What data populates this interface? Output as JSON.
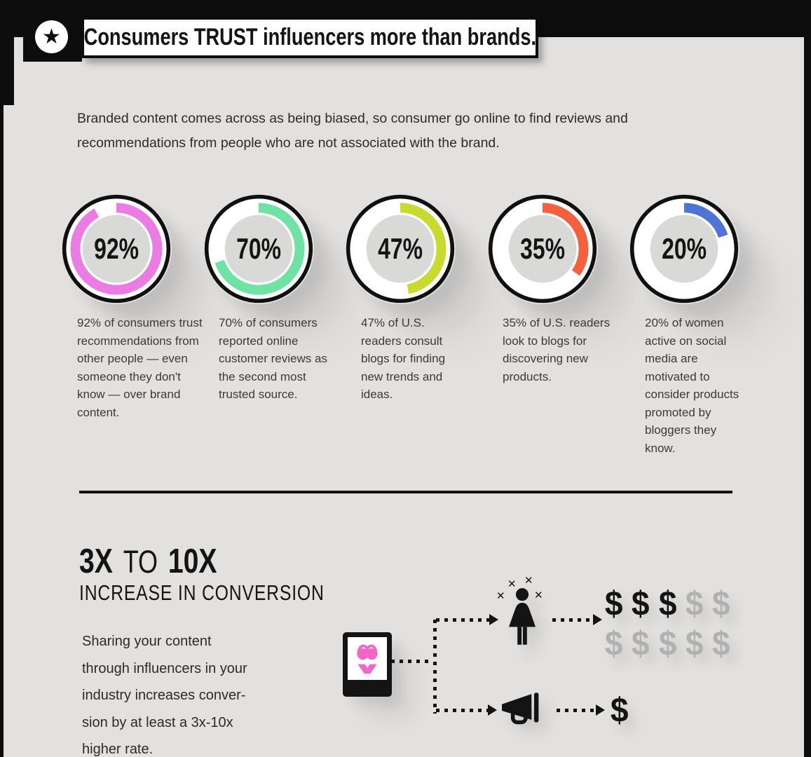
{
  "page": {
    "background": "#e2e1df",
    "frame_color": "#0d0d0d"
  },
  "header": {
    "badge_glyph": "★",
    "title": "Consumers TRUST influencers more than brands."
  },
  "intro": {
    "lines": [
      "Branded content comes across as being biased, so consumer go online to find reviews and",
      "recommendations from people who are not associated with the brand."
    ]
  },
  "chart_data": {
    "type": "pie",
    "variant": "donut-gauge-row",
    "units": "percent",
    "start_angle_deg": 0,
    "direction": "clockwise",
    "ring_background": "#ffffff",
    "center_fill": "#d9d9d8",
    "items": [
      {
        "value": 92,
        "label": "92%",
        "color": "#ea7ce4",
        "caption": "92% of consumers trust recommendations from other people — even someone they don't know — over brand content."
      },
      {
        "value": 70,
        "label": "70%",
        "color": "#6fe3a4",
        "caption": "70% of consumers reported online customer reviews as the second most trusted source."
      },
      {
        "value": 47,
        "label": "47%",
        "color": "#c8da2e",
        "caption": "47% of U.S. readers consult blogs for finding new trends and ideas."
      },
      {
        "value": 35,
        "label": "35%",
        "color": "#f4613c",
        "caption": "35% of U.S. readers look to blogs for discovering new products."
      },
      {
        "value": 20,
        "label": "20%",
        "color": "#4f74d8",
        "caption": "20% of women active on social media are motivated to consider products promoted by bloggers they know."
      }
    ]
  },
  "conversion": {
    "headline": {
      "part1": "3X",
      "part2": "TO",
      "part3": "10X"
    },
    "subheadline": "INCREASE IN CONVERSION",
    "body_lines": [
      "Sharing your content",
      "through influencers in your",
      "industry increases conver-",
      "sion by at least a 3x-10x",
      "higher rate."
    ],
    "diagram": {
      "source_icon": "tablet-with-bikini",
      "bikini_color": "#f266c9",
      "influencer_icon": "woman-figure",
      "sparkle_glyph": "✕",
      "megaphone_icon": "megaphone",
      "dollar_glyph": "$",
      "dollar_black": "#141414",
      "dollar_gray": "#b1b1b1",
      "influencer_dollars": {
        "row1_black": 3,
        "row1_gray": 2,
        "row2_black": 0,
        "row2_gray": 5
      },
      "brand_dollars": 1
    }
  }
}
